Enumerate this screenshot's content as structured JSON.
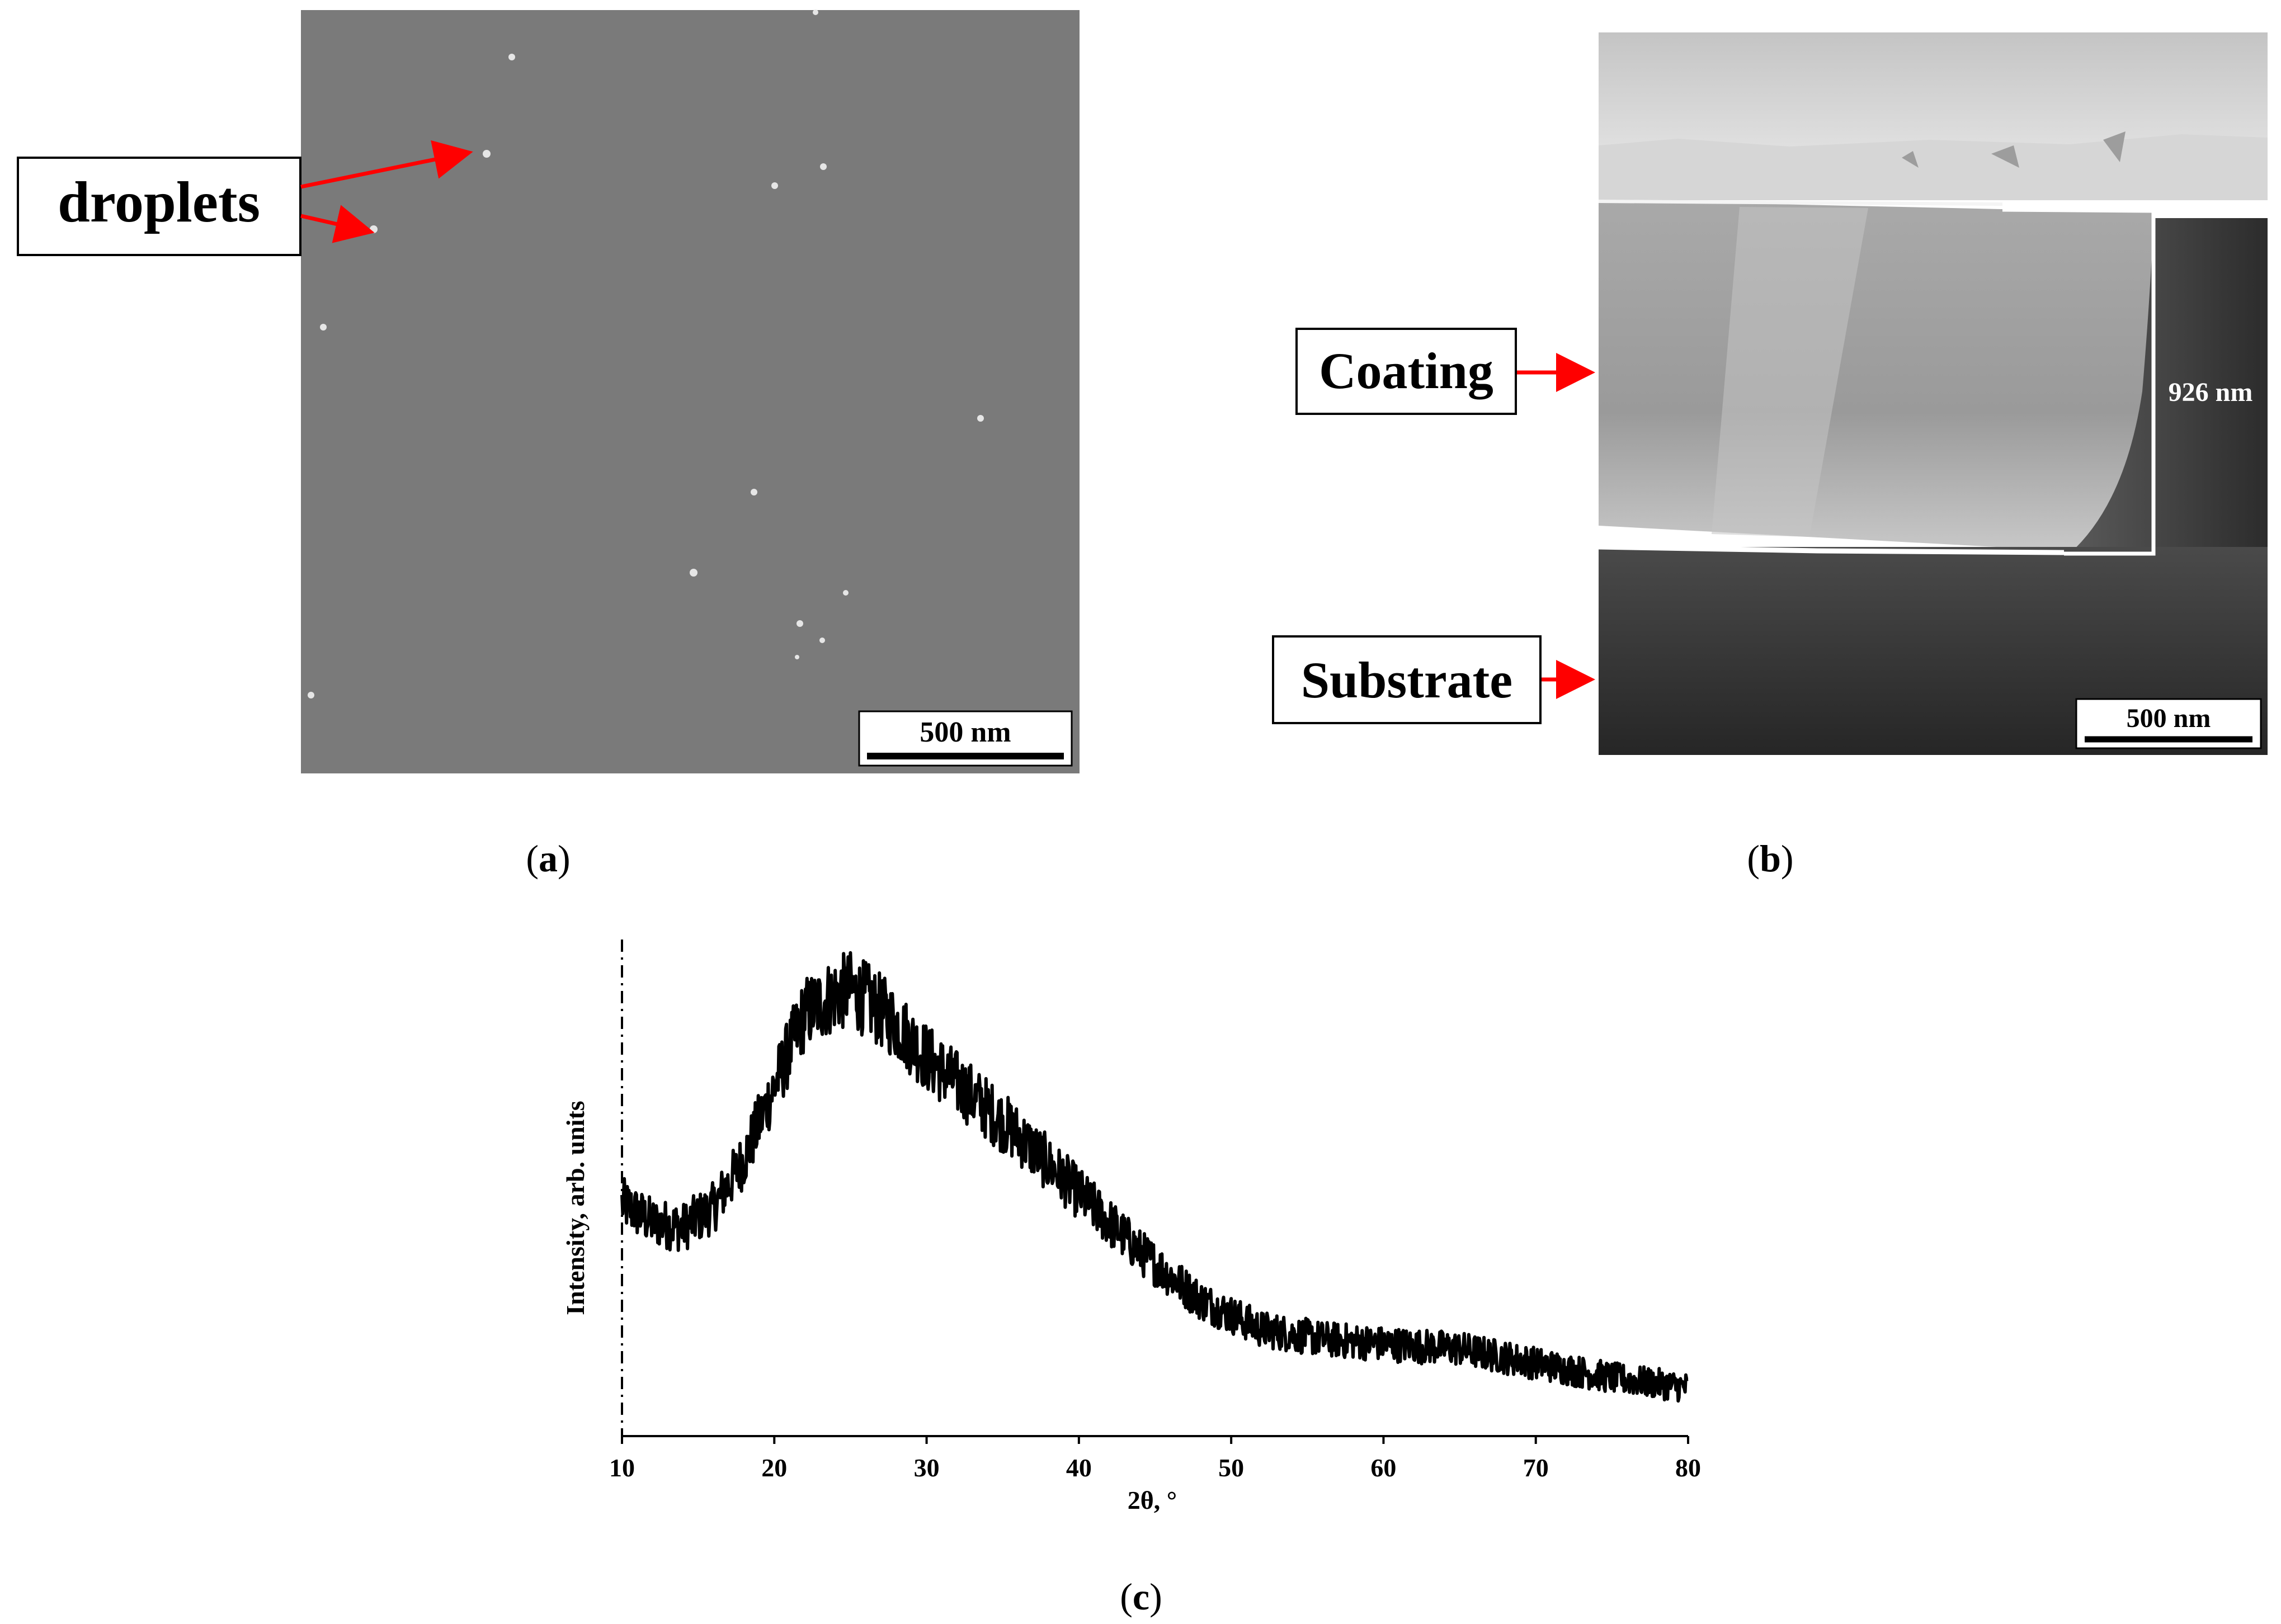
{
  "panel_a": {
    "caption_letter": "a",
    "callout_label": "droplets",
    "scalebar_label": "500 nm",
    "image_color": "#7a7a7a",
    "droplet_color": "#e6e6e6"
  },
  "panel_b": {
    "caption_letter": "b",
    "coating_label": "Coating",
    "substrate_label": "Substrate",
    "thickness_label": "926 nm",
    "scalebar_label": "500 nm"
  },
  "panel_c": {
    "caption_letter": "c",
    "chart_data": {
      "type": "line",
      "title": "",
      "xlabel": "2θ, °",
      "ylabel": "Intensity, arb. units",
      "xlim": [
        10,
        80
      ],
      "ylim": [
        0,
        1
      ],
      "x_ticks": [
        10,
        20,
        30,
        40,
        50,
        60,
        70,
        80
      ],
      "x_tick_labels": [
        "10",
        "20",
        "30",
        "40",
        "50",
        "60",
        "70",
        "80"
      ],
      "y_ticks_shown": false,
      "grid": false,
      "legend": "none",
      "series": [
        {
          "color": "#000000",
          "x": [
            10,
            12,
            14,
            16,
            18,
            20,
            22,
            24,
            25,
            26,
            28,
            30,
            33,
            36,
            40,
            44,
            48,
            52,
            56,
            60,
            65,
            70,
            75,
            80
          ],
          "y": [
            0.48,
            0.44,
            0.43,
            0.47,
            0.57,
            0.72,
            0.87,
            0.91,
            0.92,
            0.9,
            0.85,
            0.78,
            0.7,
            0.62,
            0.5,
            0.38,
            0.28,
            0.22,
            0.2,
            0.19,
            0.18,
            0.15,
            0.12,
            0.1
          ]
        }
      ]
    }
  }
}
